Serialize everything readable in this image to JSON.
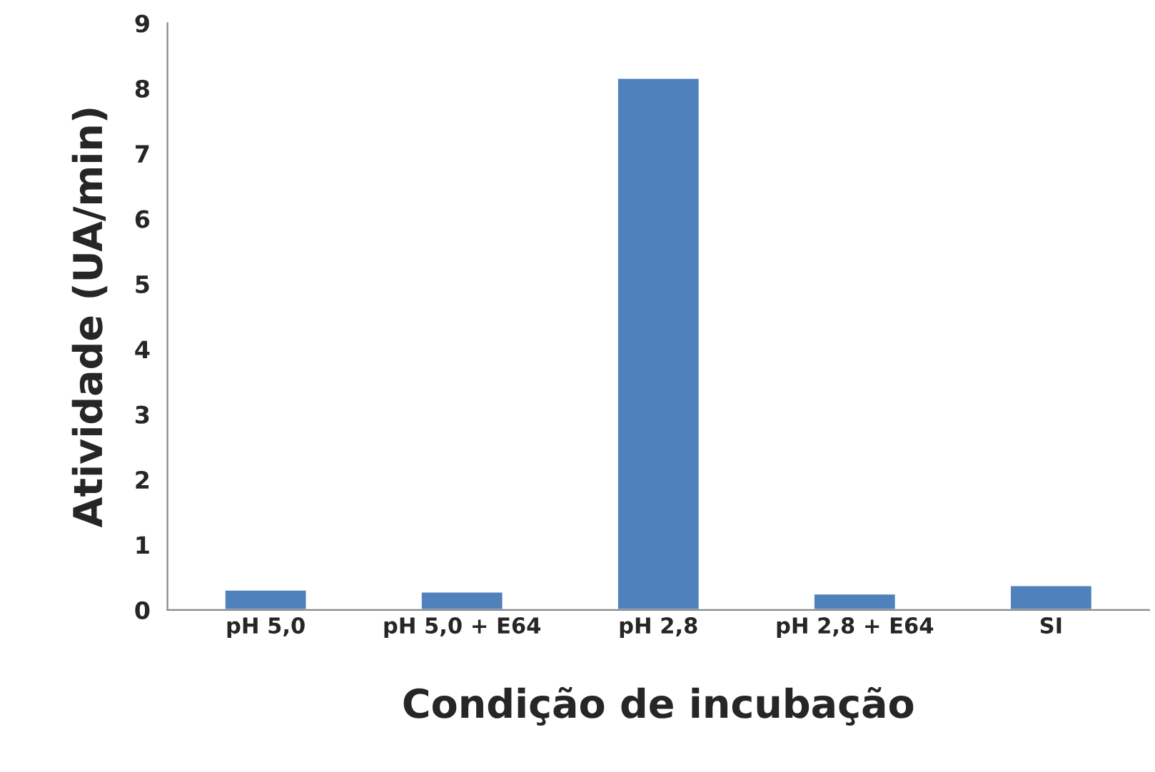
{
  "chart_data": {
    "type": "bar",
    "xlabel": "Condição de incubação",
    "ylabel": "Atividade (UA/min)",
    "categories": [
      "pH 5,0",
      "pH 5,0 + E64",
      "pH 2,8",
      "pH 2,8 + E64",
      "SI"
    ],
    "values": [
      0.31,
      0.28,
      8.16,
      0.25,
      0.38
    ],
    "color": "#4f81bd",
    "ylim": [
      0,
      9
    ],
    "yticks": [
      0,
      1,
      2,
      3,
      4,
      5,
      6,
      7,
      8,
      9
    ],
    "grid": false
  }
}
